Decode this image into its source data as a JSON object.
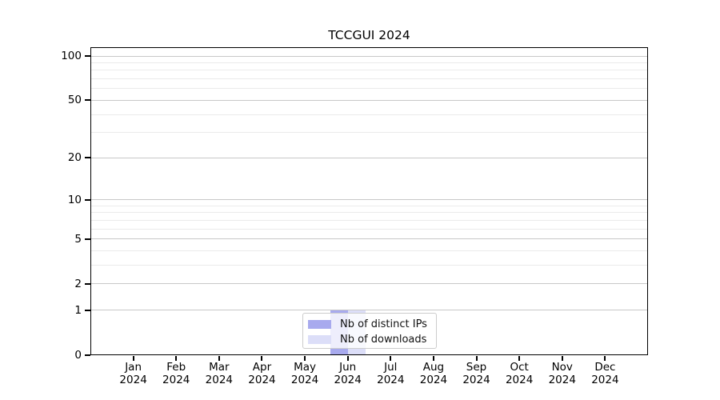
{
  "chart_data": {
    "type": "bar",
    "title": "TCCGUI 2024",
    "categories": [
      "Jan",
      "Feb",
      "Mar",
      "Apr",
      "May",
      "Jun",
      "Jul",
      "Aug",
      "Sep",
      "Oct",
      "Nov",
      "Dec"
    ],
    "year_label": "2024",
    "series": [
      {
        "name": "Nb of distinct IPs",
        "color": "#a8aaee",
        "values": [
          0,
          0,
          0,
          0,
          0,
          1,
          0,
          0,
          0,
          0,
          0,
          0
        ]
      },
      {
        "name": "Nb of downloads",
        "color": "#dcdef8",
        "values": [
          0,
          0,
          0,
          0,
          0,
          1,
          0,
          0,
          0,
          0,
          0,
          0
        ]
      }
    ],
    "yscale": "log1p",
    "yticks": [
      0,
      1,
      2,
      5,
      10,
      20,
      50,
      100
    ],
    "minor_yticks": [
      3,
      4,
      6,
      7,
      8,
      9,
      30,
      40,
      60,
      70,
      80,
      90
    ],
    "ylim": [
      0,
      115
    ],
    "xlabel": "",
    "ylabel": "",
    "grid": "horizontal",
    "legend_position": "lower-center-inside"
  }
}
